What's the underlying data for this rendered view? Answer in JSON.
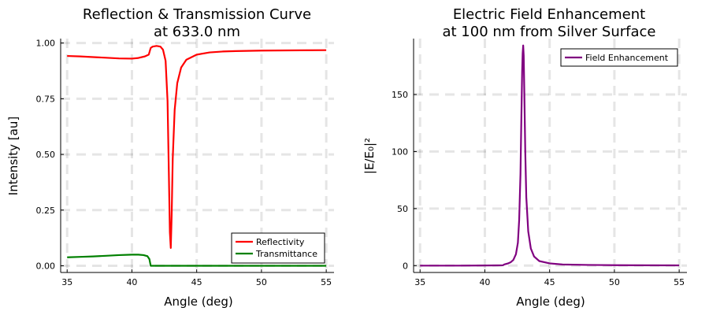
{
  "chart_data": [
    {
      "type": "line",
      "title": "Reflection & Transmission Curve",
      "subtitle": "at 633.0 nm",
      "xlabel": "Angle (deg)",
      "ylabel": "Intensity [au]",
      "xlim": [
        34.5,
        55.6
      ],
      "ylim": [
        -0.03,
        1.02
      ],
      "xticks": [
        35,
        40,
        45,
        50,
        55
      ],
      "xtick_labels": [
        "35",
        "40",
        "45",
        "50",
        "55"
      ],
      "yticks": [
        0,
        0.25,
        0.5,
        0.75,
        1.0
      ],
      "ytick_labels": [
        "0.00",
        "0.25",
        "0.50",
        "0.75",
        "1.00"
      ],
      "grid": true,
      "legend_position": "bottom-right",
      "series": [
        {
          "name": "Reflectivity",
          "color": "#ff0000",
          "points": [
            [
              35,
              0.942
            ],
            [
              36,
              0.94
            ],
            [
              37,
              0.937
            ],
            [
              38,
              0.934
            ],
            [
              39,
              0.931
            ],
            [
              40,
              0.93
            ],
            [
              40.5,
              0.933
            ],
            [
              41,
              0.94
            ],
            [
              41.3,
              0.948
            ],
            [
              41.45,
              0.978
            ],
            [
              41.6,
              0.984
            ],
            [
              41.9,
              0.987
            ],
            [
              42.2,
              0.984
            ],
            [
              42.4,
              0.97
            ],
            [
              42.6,
              0.92
            ],
            [
              42.75,
              0.74
            ],
            [
              42.85,
              0.42
            ],
            [
              42.93,
              0.15
            ],
            [
              43.0,
              0.08
            ],
            [
              43.07,
              0.23
            ],
            [
              43.15,
              0.48
            ],
            [
              43.3,
              0.7
            ],
            [
              43.5,
              0.82
            ],
            [
              43.8,
              0.89
            ],
            [
              44.2,
              0.925
            ],
            [
              45,
              0.948
            ],
            [
              46,
              0.958
            ],
            [
              47,
              0.962
            ],
            [
              48,
              0.964
            ],
            [
              50,
              0.966
            ],
            [
              52,
              0.967
            ],
            [
              55,
              0.968
            ]
          ]
        },
        {
          "name": "Transmittance",
          "color": "#008000",
          "points": [
            [
              35,
              0.038
            ],
            [
              36,
              0.04
            ],
            [
              37,
              0.042
            ],
            [
              38,
              0.045
            ],
            [
              39,
              0.048
            ],
            [
              40,
              0.05
            ],
            [
              40.5,
              0.05
            ],
            [
              40.9,
              0.048
            ],
            [
              41.2,
              0.043
            ],
            [
              41.35,
              0.03
            ],
            [
              41.45,
              0.0
            ],
            [
              42,
              0.0
            ],
            [
              45,
              0.0
            ],
            [
              50,
              0.0
            ],
            [
              55,
              0.0
            ]
          ]
        }
      ]
    },
    {
      "type": "line",
      "title": "Electric Field Enhancement",
      "subtitle": "at 100 nm from Silver Surface",
      "xlabel": "Angle (deg)",
      "ylabel": "|E/E₀|²",
      "xlim": [
        34.5,
        55.6
      ],
      "ylim": [
        -6,
        199
      ],
      "xticks": [
        35,
        40,
        45,
        50,
        55
      ],
      "xtick_labels": [
        "35",
        "40",
        "45",
        "50",
        "55"
      ],
      "yticks": [
        0,
        50,
        100,
        150
      ],
      "ytick_labels": [
        "0",
        "50",
        "100",
        "150"
      ],
      "grid": true,
      "legend_position": "top-right",
      "series": [
        {
          "name": "Field Enhancement",
          "color": "#800080",
          "points": [
            [
              35,
              0.0
            ],
            [
              38,
              0.0
            ],
            [
              40,
              0.1
            ],
            [
              41,
              0.2
            ],
            [
              41.4,
              0.3
            ],
            [
              41.5,
              1.0
            ],
            [
              41.8,
              2.0
            ],
            [
              42.0,
              3.0
            ],
            [
              42.2,
              5.0
            ],
            [
              42.4,
              10.0
            ],
            [
              42.55,
              20.0
            ],
            [
              42.65,
              40.0
            ],
            [
              42.75,
              80.0
            ],
            [
              42.82,
              130.0
            ],
            [
              42.88,
              170.0
            ],
            [
              42.92,
              186.0
            ],
            [
              42.96,
              193.0
            ],
            [
              43.0,
              184.0
            ],
            [
              43.05,
              150.0
            ],
            [
              43.12,
              100.0
            ],
            [
              43.2,
              60.0
            ],
            [
              43.35,
              30.0
            ],
            [
              43.55,
              15.0
            ],
            [
              43.8,
              8.0
            ],
            [
              44.2,
              4.0
            ],
            [
              45,
              2.0
            ],
            [
              46,
              1.0
            ],
            [
              48,
              0.6
            ],
            [
              50,
              0.4
            ],
            [
              52,
              0.3
            ],
            [
              55,
              0.2
            ]
          ]
        }
      ]
    }
  ]
}
